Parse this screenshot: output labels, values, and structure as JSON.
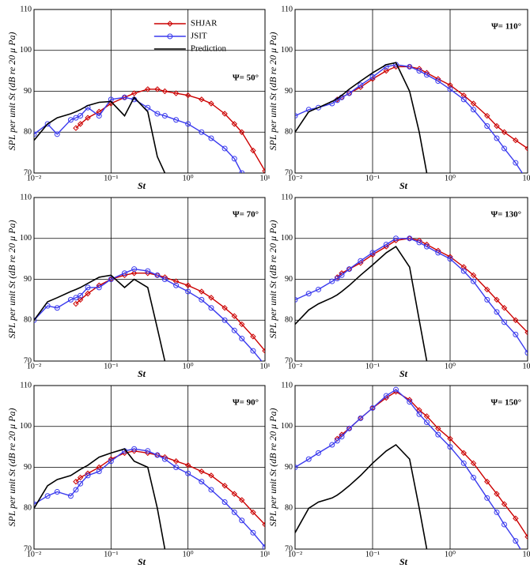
{
  "chart_data": [
    {
      "type": "line",
      "annotation": "Ψ= 50°",
      "xlabel": "St",
      "ylabel": "SPL per unit St (dB re 20 μ Pa)",
      "xscale": "log",
      "xlim": [
        0.01,
        10
      ],
      "xticks": [
        {
          "value": 0.01,
          "label": "10⁻²"
        },
        {
          "value": 0.1,
          "label": "10⁻¹"
        },
        {
          "value": 1,
          "label": "10⁰"
        },
        {
          "value": 10,
          "label": "10¹"
        }
      ],
      "ylim": [
        70,
        110
      ],
      "yticks": [
        70,
        80,
        90,
        100,
        110
      ],
      "grid": true,
      "legend": "upper center",
      "x": [
        0.01,
        0.015,
        0.02,
        0.03,
        0.035,
        0.04,
        0.05,
        0.07,
        0.1,
        0.15,
        0.2,
        0.3,
        0.4,
        0.5,
        0.7,
        1,
        1.5,
        2,
        3,
        4,
        5,
        7,
        10
      ],
      "series": [
        {
          "name": "SHJAR",
          "color": "#cc0000",
          "marker": "diamond",
          "values": [
            null,
            null,
            null,
            null,
            81,
            82,
            83.5,
            85,
            87,
            88.5,
            89.5,
            90.5,
            90.5,
            90,
            89.5,
            89,
            88,
            87,
            84.5,
            82,
            80,
            75.5,
            70.5
          ]
        },
        {
          "name": "JSIT",
          "color": "#3a3aee",
          "marker": "circle",
          "values": [
            79.5,
            82,
            79.5,
            83,
            83.5,
            84,
            86,
            84,
            88,
            88.5,
            88,
            86,
            84.5,
            84,
            83,
            82,
            80,
            78.5,
            76,
            73.5,
            70,
            null,
            null
          ]
        },
        {
          "name": "Prediction",
          "color": "#000000",
          "values": [
            78,
            82,
            83.5,
            84.5,
            85,
            85.5,
            86.5,
            87.3,
            87.5,
            84,
            88.5,
            85,
            74,
            70,
            null,
            null,
            null,
            null,
            null,
            null,
            null,
            null,
            null
          ]
        }
      ]
    },
    {
      "type": "line",
      "annotation": "Ψ= 110°",
      "xlabel": "St",
      "ylabel": "SPL per unit St (dB re 20 μ Pa)",
      "xscale": "log",
      "xlim": [
        0.01,
        10
      ],
      "xticks": [
        {
          "value": 0.01,
          "label": "10⁻²"
        },
        {
          "value": 0.1,
          "label": "10⁻¹"
        },
        {
          "value": 1,
          "label": "10⁰"
        },
        {
          "value": 10,
          "label": "10¹"
        }
      ],
      "ylim": [
        70,
        110
      ],
      "yticks": [
        70,
        80,
        90,
        100,
        110
      ],
      "grid": true,
      "x": [
        0.01,
        0.015,
        0.02,
        0.03,
        0.035,
        0.04,
        0.05,
        0.07,
        0.1,
        0.15,
        0.2,
        0.3,
        0.4,
        0.5,
        0.7,
        1,
        1.5,
        2,
        3,
        4,
        5,
        7,
        10
      ],
      "series": [
        {
          "name": "SHJAR",
          "color": "#cc0000",
          "marker": "diamond",
          "values": [
            null,
            null,
            null,
            null,
            88,
            88.5,
            89.5,
            91,
            93,
            95,
            96,
            96,
            95.5,
            94.5,
            93,
            91.5,
            89,
            87,
            84,
            81.5,
            80,
            78,
            76
          ]
        },
        {
          "name": "JSIT",
          "color": "#3a3aee",
          "marker": "circle",
          "values": [
            84,
            85.5,
            86,
            87,
            87.8,
            88.5,
            89.5,
            91.5,
            93.5,
            96,
            96.5,
            96,
            95,
            94,
            92.5,
            90.5,
            88,
            85.5,
            81.5,
            78.5,
            76,
            72.5,
            68
          ]
        },
        {
          "name": "Prediction",
          "color": "#000000",
          "values": [
            80,
            85,
            86,
            87.5,
            88.2,
            89,
            90.5,
            92.5,
            94.5,
            96.5,
            97,
            90,
            80,
            70,
            null,
            null,
            null,
            null,
            null,
            null,
            null,
            null,
            null
          ]
        }
      ]
    },
    {
      "type": "line",
      "annotation": "Ψ= 70°",
      "xlabel": "St",
      "ylabel": "SPL per unit St (dB re 20 μ Pa)",
      "xscale": "log",
      "xlim": [
        0.01,
        10
      ],
      "xticks": [
        {
          "value": 0.01,
          "label": "10⁻²"
        },
        {
          "value": 0.1,
          "label": "10⁻¹"
        },
        {
          "value": 1,
          "label": "10⁰"
        },
        {
          "value": 10,
          "label": "10¹"
        }
      ],
      "ylim": [
        70,
        110
      ],
      "yticks": [
        70,
        80,
        90,
        100,
        110
      ],
      "grid": true,
      "x": [
        0.01,
        0.015,
        0.02,
        0.03,
        0.035,
        0.04,
        0.05,
        0.07,
        0.1,
        0.15,
        0.2,
        0.3,
        0.4,
        0.5,
        0.7,
        1,
        1.5,
        2,
        3,
        4,
        5,
        7,
        10
      ],
      "series": [
        {
          "name": "SHJAR",
          "color": "#cc0000",
          "marker": "diamond",
          "values": [
            null,
            null,
            null,
            null,
            84,
            85,
            86.5,
            88.5,
            90,
            91,
            91.5,
            91.5,
            91,
            90.5,
            89.5,
            88.5,
            87,
            85.5,
            83,
            81,
            79,
            76,
            72.5
          ]
        },
        {
          "name": "JSIT",
          "color": "#3a3aee",
          "marker": "circle",
          "values": [
            80,
            83.5,
            83,
            85,
            85.5,
            86,
            88,
            88,
            90,
            91.5,
            92.5,
            92,
            91,
            90,
            88.5,
            87,
            85,
            83,
            80,
            77.5,
            75.5,
            72.5,
            69
          ]
        },
        {
          "name": "Prediction",
          "color": "#000000",
          "values": [
            80,
            84.5,
            85.5,
            87,
            87.5,
            88,
            89,
            90.5,
            91,
            88,
            90,
            88,
            78,
            70,
            null,
            null,
            null,
            null,
            null,
            null,
            null,
            null,
            null
          ]
        }
      ]
    },
    {
      "type": "line",
      "annotation": "Ψ= 130°",
      "xlabel": "St",
      "ylabel": "SPL per unit St (dB re 20 μ Pa)",
      "xscale": "log",
      "xlim": [
        0.01,
        10
      ],
      "xticks": [
        {
          "value": 0.01,
          "label": "10⁻²"
        },
        {
          "value": 0.1,
          "label": "10⁻¹"
        },
        {
          "value": 1,
          "label": "10⁰"
        },
        {
          "value": 10,
          "label": "10¹"
        }
      ],
      "ylim": [
        70,
        110
      ],
      "yticks": [
        70,
        80,
        90,
        100,
        110
      ],
      "grid": true,
      "x": [
        0.01,
        0.015,
        0.02,
        0.03,
        0.035,
        0.04,
        0.05,
        0.07,
        0.1,
        0.15,
        0.2,
        0.3,
        0.4,
        0.5,
        0.7,
        1,
        1.5,
        2,
        3,
        4,
        5,
        7,
        10
      ],
      "series": [
        {
          "name": "SHJAR",
          "color": "#cc0000",
          "marker": "diamond",
          "values": [
            null,
            null,
            null,
            null,
            90.5,
            91.5,
            92.5,
            94,
            96,
            98,
            99.5,
            100,
            99.5,
            98.5,
            97,
            95.5,
            93,
            91,
            87.5,
            85,
            83,
            80,
            77
          ]
        },
        {
          "name": "JSIT",
          "color": "#3a3aee",
          "marker": "circle",
          "values": [
            85,
            86.5,
            87.5,
            89.5,
            90.2,
            91,
            92.5,
            94.5,
            96.5,
            98.5,
            100,
            100,
            99,
            98,
            96.5,
            95,
            92,
            89.5,
            85,
            82,
            79.5,
            76.5,
            72
          ]
        },
        {
          "name": "Prediction",
          "color": "#000000",
          "values": [
            79,
            82.5,
            84,
            85.5,
            86.2,
            87,
            88.5,
            91,
            93.5,
            96.5,
            98,
            93,
            80,
            70,
            null,
            null,
            null,
            null,
            null,
            null,
            null,
            null,
            null
          ]
        }
      ]
    },
    {
      "type": "line",
      "annotation": "Ψ= 90°",
      "xlabel": "St",
      "ylabel": "SPL per unit St (dB re 20 μ Pa)",
      "xscale": "log",
      "xlim": [
        0.01,
        10
      ],
      "xticks": [
        {
          "value": 0.01,
          "label": "10⁻²"
        },
        {
          "value": 0.1,
          "label": "10⁻¹"
        },
        {
          "value": 1,
          "label": "10⁰"
        },
        {
          "value": 10,
          "label": "10¹"
        }
      ],
      "ylim": [
        70,
        110
      ],
      "yticks": [
        70,
        80,
        90,
        100,
        110
      ],
      "grid": true,
      "x": [
        0.01,
        0.015,
        0.02,
        0.03,
        0.035,
        0.04,
        0.05,
        0.07,
        0.1,
        0.15,
        0.2,
        0.3,
        0.4,
        0.5,
        0.7,
        1,
        1.5,
        2,
        3,
        4,
        5,
        7,
        10
      ],
      "series": [
        {
          "name": "SHJAR",
          "color": "#cc0000",
          "marker": "diamond",
          "values": [
            null,
            null,
            null,
            null,
            86.5,
            87.5,
            88.5,
            90,
            92,
            93.5,
            94,
            93.5,
            93,
            92.5,
            91.5,
            90.5,
            89,
            88,
            85.5,
            83.5,
            82,
            79,
            76
          ]
        },
        {
          "name": "JSIT",
          "color": "#3a3aee",
          "marker": "circle",
          "values": [
            81,
            83,
            84,
            83,
            84.5,
            86,
            88,
            89,
            91.5,
            94,
            94.5,
            94,
            93,
            92,
            90,
            88.5,
            86.5,
            84.5,
            81.5,
            79,
            77,
            74,
            70.5
          ]
        },
        {
          "name": "Prediction",
          "color": "#000000",
          "values": [
            80,
            85.5,
            87,
            88,
            88.8,
            89.5,
            90.5,
            92.5,
            93.5,
            94.5,
            91.5,
            90,
            80,
            70,
            null,
            null,
            null,
            null,
            null,
            null,
            null,
            null,
            null
          ]
        }
      ]
    },
    {
      "type": "line",
      "annotation": "Ψ= 150°",
      "xlabel": "St",
      "ylabel": "SPL per unit St (dB re 20 μ Pa)",
      "xscale": "log",
      "xlim": [
        0.01,
        10
      ],
      "xticks": [
        {
          "value": 0.01,
          "label": "10⁻²"
        },
        {
          "value": 0.1,
          "label": "10⁻¹"
        },
        {
          "value": 1,
          "label": "10⁰"
        },
        {
          "value": 10,
          "label": "10¹"
        }
      ],
      "ylim": [
        70,
        110
      ],
      "yticks": [
        70,
        80,
        90,
        100,
        110
      ],
      "grid": true,
      "x": [
        0.01,
        0.015,
        0.02,
        0.03,
        0.035,
        0.04,
        0.05,
        0.07,
        0.1,
        0.15,
        0.2,
        0.3,
        0.4,
        0.5,
        0.7,
        1,
        1.5,
        2,
        3,
        4,
        5,
        7,
        10
      ],
      "series": [
        {
          "name": "SHJAR",
          "color": "#cc0000",
          "marker": "diamond",
          "values": [
            null,
            null,
            null,
            null,
            97,
            98,
            99.5,
            102,
            104.5,
            107,
            108.5,
            106.5,
            104,
            102.5,
            99.5,
            97,
            93.5,
            91,
            86.5,
            83.5,
            81,
            77.5,
            73
          ]
        },
        {
          "name": "JSIT",
          "color": "#3a3aee",
          "marker": "circle",
          "values": [
            90,
            92,
            93.5,
            95.5,
            96.5,
            97.5,
            99.5,
            102,
            104.5,
            107.5,
            109,
            106,
            103,
            101,
            98,
            95,
            91,
            87.5,
            82.5,
            79,
            76,
            72,
            67
          ]
        },
        {
          "name": "Prediction",
          "color": "#000000",
          "values": [
            74,
            80,
            81.5,
            82.5,
            83.2,
            84,
            85.5,
            88,
            91,
            94,
            95.5,
            92,
            80,
            70,
            null,
            null,
            null,
            null,
            null,
            null,
            null,
            null,
            null
          ]
        }
      ]
    }
  ]
}
